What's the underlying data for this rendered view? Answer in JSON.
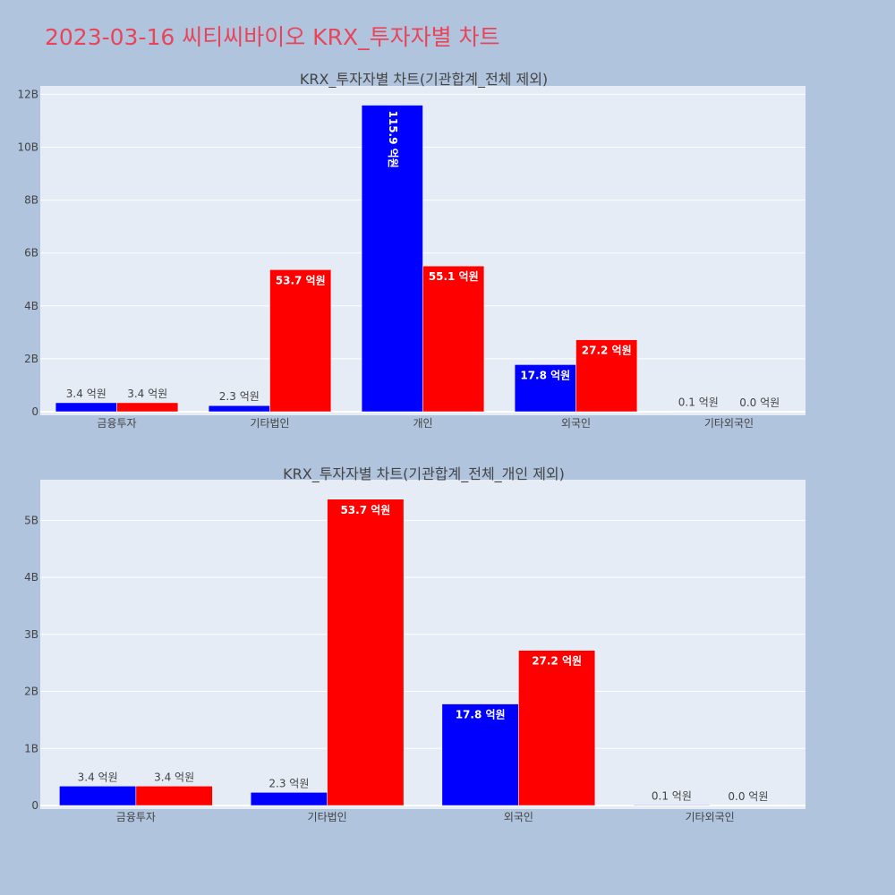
{
  "header": {
    "title": "2023-03-16 씨티씨바이오 KRX_투자자별 차트"
  },
  "colors": {
    "background": "#b0c4de",
    "plot_bg": "#e5ecf6",
    "buy": "#0000ff",
    "sell": "#ff0000",
    "title": "#e8455a"
  },
  "chart_data": [
    {
      "type": "bar",
      "title": "KRX_투자자별 차트(기관합계_전체 제외)",
      "categories": [
        "금융투자",
        "기타법인",
        "개인",
        "외국인",
        "기타외국인"
      ],
      "ylim": [
        0,
        12250000000.0
      ],
      "yticks": [
        0,
        2000000000.0,
        4000000000.0,
        6000000000.0,
        8000000000.0,
        10000000000.0,
        12000000000.0
      ],
      "ytick_labels": [
        "0",
        "2B",
        "4B",
        "6B",
        "8B",
        "10B",
        "12B"
      ],
      "grid": true,
      "series": [
        {
          "color": "#0000ff",
          "values": [
            340000000.0,
            230000000.0,
            11590000000.0,
            1780000000.0,
            10000000.0
          ],
          "labels": [
            "3.4 억원",
            "2.3 억원",
            "115.9 억원",
            "17.8 억원",
            "0.1 억원"
          ]
        },
        {
          "color": "#ff0000",
          "values": [
            340000000.0,
            5370000000.0,
            5510000000.0,
            2720000000.0,
            0.0
          ],
          "labels": [
            "3.4 억원",
            "53.7 억원",
            "55.1 억원",
            "27.2 억원",
            "0.0 억원"
          ]
        }
      ]
    },
    {
      "type": "bar",
      "title": "KRX_투자자별 차트(기관합계_전체_개인 제외)",
      "categories": [
        "금융투자",
        "기타법인",
        "외국인",
        "기타외국인"
      ],
      "ylim": [
        0,
        5680000000.0
      ],
      "yticks": [
        0,
        1000000000.0,
        2000000000.0,
        3000000000.0,
        4000000000.0,
        5000000000.0
      ],
      "ytick_labels": [
        "0",
        "1B",
        "2B",
        "3B",
        "4B",
        "5B"
      ],
      "grid": true,
      "series": [
        {
          "color": "#0000ff",
          "values": [
            340000000.0,
            230000000.0,
            1780000000.0,
            10000000.0
          ],
          "labels": [
            "3.4 억원",
            "2.3 억원",
            "17.8 억원",
            "0.1 억원"
          ]
        },
        {
          "color": "#ff0000",
          "values": [
            340000000.0,
            5370000000.0,
            2720000000.0,
            0.0
          ],
          "labels": [
            "3.4 억원",
            "53.7 억원",
            "27.2 억원",
            "0.0 억원"
          ]
        }
      ]
    }
  ]
}
